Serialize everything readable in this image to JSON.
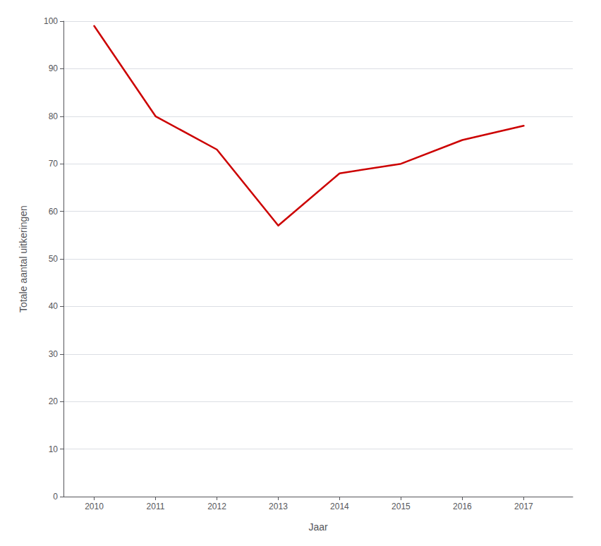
{
  "chart_data": {
    "type": "line",
    "x": [
      2010,
      2011,
      2012,
      2013,
      2014,
      2015,
      2016,
      2017
    ],
    "values": [
      99,
      80,
      73,
      57,
      68,
      70,
      75,
      78
    ],
    "color": "#cc0000",
    "xlabel": "Jaar",
    "ylabel": "Totale aantal uitkeringen",
    "xlim": [
      2009.5,
      2017.8
    ],
    "ylim": [
      0,
      100
    ],
    "xticks": [
      2010,
      2011,
      2012,
      2013,
      2014,
      2015,
      2016,
      2017
    ],
    "yticks": [
      0,
      10,
      20,
      30,
      40,
      50,
      60,
      70,
      80,
      90,
      100
    ],
    "grid": true
  }
}
